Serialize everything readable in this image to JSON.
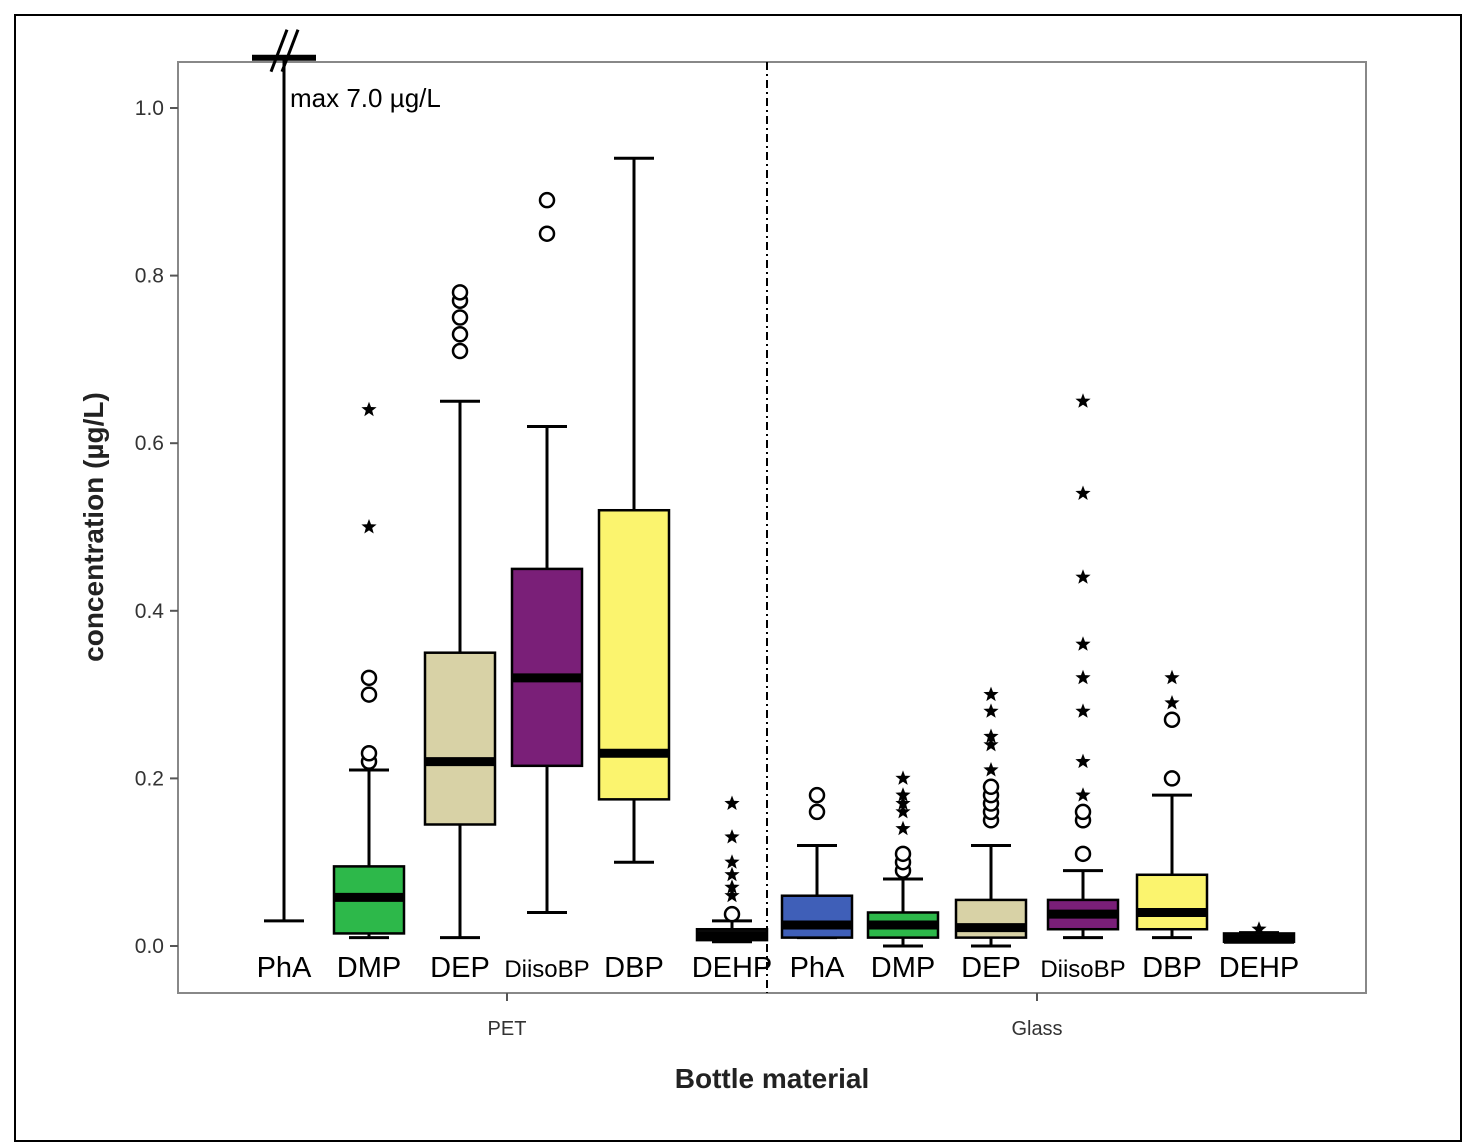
{
  "chart_data": {
    "type": "box",
    "title": "",
    "xlabel": "Bottle material",
    "ylabel": "concentration (µg/L)",
    "ylim": [
      0,
      1.06
    ],
    "y_ticks": [
      "0.0",
      "0.2",
      "0.4",
      "0.6",
      "0.8",
      "1.0"
    ],
    "y_tick_values": [
      0,
      0.2,
      0.4,
      0.6,
      0.8,
      1.0
    ],
    "grid": false,
    "groups": [
      "PET",
      "Glass"
    ],
    "annotation": "max 7.0 µg/L",
    "colors": {
      "PhA": "#3f5fb8",
      "DMP": "#2db84a",
      "DEP": "#d8d2a6",
      "DiisoBP": "#7a1f78",
      "DBP": "#fbf46e",
      "DEHP": "#111111"
    },
    "series": [
      {
        "group": "PET",
        "name": "PhA",
        "whisker_low": 0.03,
        "q1": 1.06,
        "median": 1.06,
        "q3": 1.06,
        "whisker_high": 7.0,
        "outliers": [],
        "extremes": []
      },
      {
        "group": "PET",
        "name": "DMP",
        "whisker_low": 0.01,
        "q1": 0.015,
        "median": 0.058,
        "q3": 0.095,
        "whisker_high": 0.21,
        "outliers": [
          0.22,
          0.23,
          0.3,
          0.32
        ],
        "extremes": [
          0.5,
          0.64
        ]
      },
      {
        "group": "PET",
        "name": "DEP",
        "whisker_low": 0.01,
        "q1": 0.145,
        "median": 0.22,
        "q3": 0.35,
        "whisker_high": 0.65,
        "outliers": [
          0.71,
          0.73,
          0.75,
          0.77,
          0.78
        ],
        "extremes": []
      },
      {
        "group": "PET",
        "name": "DiisoBP",
        "whisker_low": 0.04,
        "q1": 0.215,
        "median": 0.32,
        "q3": 0.45,
        "whisker_high": 0.62,
        "outliers": [
          0.85,
          0.89
        ],
        "extremes": []
      },
      {
        "group": "PET",
        "name": "DBP",
        "whisker_low": 0.1,
        "q1": 0.175,
        "median": 0.23,
        "q3": 0.52,
        "whisker_high": 0.94,
        "outliers": [],
        "extremes": []
      },
      {
        "group": "PET",
        "name": "DEHP",
        "whisker_low": 0.005,
        "q1": 0.007,
        "median": 0.012,
        "q3": 0.02,
        "whisker_high": 0.03,
        "outliers": [
          0.038
        ],
        "extremes": [
          0.06,
          0.07,
          0.085,
          0.1,
          0.13,
          0.17
        ]
      },
      {
        "group": "Glass",
        "name": "PhA",
        "whisker_low": 0.01,
        "q1": 0.01,
        "median": 0.025,
        "q3": 0.06,
        "whisker_high": 0.12,
        "outliers": [
          0.16,
          0.18
        ],
        "extremes": []
      },
      {
        "group": "Glass",
        "name": "DMP",
        "whisker_low": 0.0,
        "q1": 0.01,
        "median": 0.025,
        "q3": 0.04,
        "whisker_high": 0.08,
        "outliers": [
          0.09,
          0.1,
          0.11
        ],
        "extremes": [
          0.14,
          0.16,
          0.17,
          0.18,
          0.2
        ]
      },
      {
        "group": "Glass",
        "name": "DEP",
        "whisker_low": 0.0,
        "q1": 0.01,
        "median": 0.022,
        "q3": 0.055,
        "whisker_high": 0.12,
        "outliers": [
          0.15,
          0.16,
          0.17,
          0.18,
          0.19
        ],
        "extremes": [
          0.21,
          0.24,
          0.25,
          0.28,
          0.3
        ]
      },
      {
        "group": "Glass",
        "name": "DiisoBP",
        "whisker_low": 0.01,
        "q1": 0.02,
        "median": 0.038,
        "q3": 0.055,
        "whisker_high": 0.09,
        "outliers": [
          0.11,
          0.15,
          0.16
        ],
        "extremes": [
          0.18,
          0.22,
          0.28,
          0.32,
          0.36,
          0.44,
          0.54,
          0.65
        ]
      },
      {
        "group": "Glass",
        "name": "DBP",
        "whisker_low": 0.01,
        "q1": 0.02,
        "median": 0.04,
        "q3": 0.085,
        "whisker_high": 0.18,
        "outliers": [
          0.2,
          0.27
        ],
        "extremes": [
          0.29,
          0.32
        ]
      },
      {
        "group": "Glass",
        "name": "DEHP",
        "whisker_low": 0.005,
        "q1": 0.005,
        "median": 0.008,
        "q3": 0.015,
        "whisker_high": 0.016,
        "outliers": [],
        "extremes": [
          0.02
        ]
      }
    ]
  }
}
